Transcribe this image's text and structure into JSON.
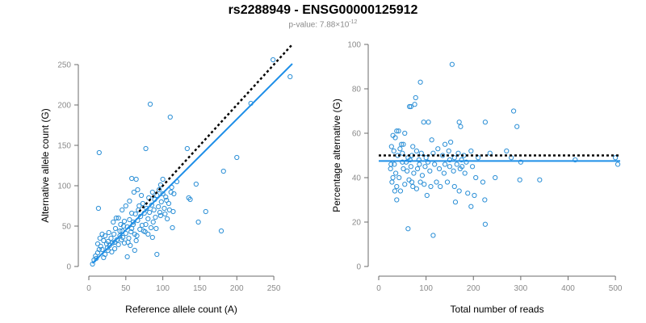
{
  "title": "rs2288949 - ENSG00000125912",
  "subtitle": {
    "prefix": "p-value: 7.88×10",
    "exponent": "-12"
  },
  "colors": {
    "points": "#2b8fd6",
    "fit": "#1f8fe8",
    "reference": "#000000",
    "ticks": "#8a8a8a"
  },
  "chart_data": [
    {
      "type": "scatter",
      "xlabel": "Reference allele count (A)",
      "ylabel": "Alternative allele count (G)",
      "xlim": [
        0,
        275
      ],
      "ylim": [
        0,
        250
      ],
      "xticks": [
        0,
        50,
        100,
        150,
        200,
        250
      ],
      "yticks": [
        0,
        50,
        100,
        150,
        200,
        250
      ],
      "grid": false,
      "fit_line": {
        "x": [
          5,
          275
        ],
        "y": [
          4,
          251
        ]
      },
      "reference_line": {
        "x": [
          68,
          275
        ],
        "y": [
          68,
          275
        ]
      },
      "points": [
        [
          14,
          141
        ],
        [
          13,
          72
        ],
        [
          83,
          201
        ],
        [
          110,
          185
        ],
        [
          77,
          146
        ],
        [
          133,
          146
        ],
        [
          182,
          118
        ],
        [
          200,
          135
        ],
        [
          219,
          202
        ],
        [
          249,
          256
        ],
        [
          272,
          235
        ],
        [
          58,
          109
        ],
        [
          64,
          108
        ],
        [
          100,
          108
        ],
        [
          97,
          101
        ],
        [
          112,
          98
        ],
        [
          115,
          90
        ],
        [
          119,
          105
        ],
        [
          145,
          102
        ],
        [
          135,
          85
        ],
        [
          137,
          83
        ],
        [
          158,
          68
        ],
        [
          148,
          55
        ],
        [
          179,
          44
        ],
        [
          113,
          48
        ],
        [
          92,
          15
        ],
        [
          5,
          3
        ],
        [
          7,
          8
        ],
        [
          9,
          13
        ],
        [
          10,
          10
        ],
        [
          12,
          17
        ],
        [
          14,
          21
        ],
        [
          16,
          25
        ],
        [
          18,
          21
        ],
        [
          20,
          11
        ],
        [
          22,
          15
        ],
        [
          12,
          28
        ],
        [
          15,
          35
        ],
        [
          18,
          40
        ],
        [
          20,
          32
        ],
        [
          24,
          28
        ],
        [
          25,
          23
        ],
        [
          26,
          31
        ],
        [
          28,
          26
        ],
        [
          30,
          35
        ],
        [
          31,
          18
        ],
        [
          32,
          29
        ],
        [
          34,
          40
        ],
        [
          35,
          22
        ],
        [
          36,
          47
        ],
        [
          38,
          33
        ],
        [
          40,
          27
        ],
        [
          42,
          38
        ],
        [
          43,
          52
        ],
        [
          45,
          44
        ],
        [
          46,
          36
        ],
        [
          48,
          29
        ],
        [
          50,
          41
        ],
        [
          52,
          49
        ],
        [
          54,
          35
        ],
        [
          55,
          58
        ],
        [
          56,
          26
        ],
        [
          58,
          47
        ],
        [
          60,
          55
        ],
        [
          62,
          40
        ],
        [
          63,
          65
        ],
        [
          64,
          32
        ],
        [
          66,
          57
        ],
        [
          67,
          70
        ],
        [
          69,
          46
        ],
        [
          70,
          62
        ],
        [
          72,
          51
        ],
        [
          73,
          78
        ],
        [
          75,
          66
        ],
        [
          76,
          43
        ],
        [
          78,
          72
        ],
        [
          80,
          59
        ],
        [
          81,
          85
        ],
        [
          82,
          67
        ],
        [
          84,
          48
        ],
        [
          85,
          76
        ],
        [
          86,
          92
        ],
        [
          88,
          70
        ],
        [
          89,
          83
        ],
        [
          90,
          61
        ],
        [
          92,
          88
        ],
        [
          94,
          74
        ],
        [
          95,
          95
        ],
        [
          96,
          67
        ],
        [
          98,
          80
        ],
        [
          100,
          90
        ],
        [
          102,
          72
        ],
        [
          104,
          86
        ],
        [
          106,
          59
        ],
        [
          108,
          78
        ],
        [
          111,
          92
        ],
        [
          114,
          68
        ],
        [
          40,
          60
        ],
        [
          45,
          70
        ],
        [
          50,
          75
        ],
        [
          55,
          81
        ],
        [
          61,
          92
        ],
        [
          66,
          95
        ],
        [
          71,
          88
        ],
        [
          60,
          52
        ],
        [
          74,
          44
        ],
        [
          86,
          36
        ],
        [
          52,
          12
        ],
        [
          62,
          20
        ],
        [
          22,
          38
        ],
        [
          27,
          42
        ],
        [
          33,
          55
        ],
        [
          37,
          60
        ],
        [
          44,
          33
        ],
        [
          47,
          50
        ],
        [
          53,
          30
        ],
        [
          57,
          43
        ],
        [
          65,
          38
        ],
        [
          77,
          52
        ],
        [
          80,
          40
        ],
        [
          87,
          55
        ],
        [
          91,
          47
        ],
        [
          97,
          63
        ],
        [
          103,
          65
        ],
        [
          105,
          82
        ],
        [
          109,
          70
        ],
        [
          26,
          20
        ],
        [
          35,
          30
        ],
        [
          42,
          44
        ],
        [
          48,
          56
        ],
        [
          58,
          66
        ],
        [
          68,
          75
        ]
      ]
    },
    {
      "type": "scatter",
      "xlabel": "Total number of reads",
      "ylabel": "Percentage alternative (G)",
      "xlim": [
        0,
        510
      ],
      "ylim": [
        0,
        100
      ],
      "xticks": [
        0,
        100,
        200,
        300,
        400,
        500
      ],
      "yticks": [
        0,
        20,
        40,
        60,
        80,
        100
      ],
      "grid": false,
      "fit_line": {
        "x": [
          0,
          510
        ],
        "y": [
          47.5,
          47.5
        ]
      },
      "reference_line": {
        "x": [
          0,
          510
        ],
        "y": [
          50,
          50
        ]
      },
      "points": [
        [
          155,
          91
        ],
        [
          88,
          83
        ],
        [
          78,
          76
        ],
        [
          76,
          73
        ],
        [
          68,
          72
        ],
        [
          65,
          72
        ],
        [
          95,
          65
        ],
        [
          105,
          65
        ],
        [
          170,
          65
        ],
        [
          173,
          63
        ],
        [
          225,
          65
        ],
        [
          285,
          70
        ],
        [
          292,
          63
        ],
        [
          38,
          61
        ],
        [
          42,
          61
        ],
        [
          30,
          59
        ],
        [
          55,
          60
        ],
        [
          35,
          58
        ],
        [
          48,
          55
        ],
        [
          27,
          54
        ],
        [
          32,
          52
        ],
        [
          40,
          50
        ],
        [
          45,
          53
        ],
        [
          50,
          51
        ],
        [
          62,
          49
        ],
        [
          70,
          50
        ],
        [
          72,
          54
        ],
        [
          80,
          52
        ],
        [
          85,
          48
        ],
        [
          90,
          51
        ],
        [
          100,
          49
        ],
        [
          115,
          51
        ],
        [
          125,
          53
        ],
        [
          135,
          50
        ],
        [
          140,
          55
        ],
        [
          148,
          52
        ],
        [
          152,
          56
        ],
        [
          160,
          49
        ],
        [
          168,
          51
        ],
        [
          175,
          48
        ],
        [
          180,
          50
        ],
        [
          185,
          47
        ],
        [
          195,
          52
        ],
        [
          210,
          49
        ],
        [
          235,
          51
        ],
        [
          270,
          52
        ],
        [
          280,
          49
        ],
        [
          300,
          47
        ],
        [
          500,
          49
        ],
        [
          505,
          46
        ],
        [
          415,
          48
        ],
        [
          25,
          44
        ],
        [
          33,
          46
        ],
        [
          36,
          42
        ],
        [
          43,
          40
        ],
        [
          52,
          44
        ],
        [
          58,
          47
        ],
        [
          60,
          43
        ],
        [
          68,
          45
        ],
        [
          74,
          42
        ],
        [
          82,
          44
        ],
        [
          92,
          41
        ],
        [
          98,
          45
        ],
        [
          108,
          43
        ],
        [
          118,
          46
        ],
        [
          128,
          44
        ],
        [
          138,
          42
        ],
        [
          150,
          45
        ],
        [
          158,
          43
        ],
        [
          165,
          46
        ],
        [
          172,
          44
        ],
        [
          182,
          42
        ],
        [
          198,
          45
        ],
        [
          205,
          40
        ],
        [
          220,
          38
        ],
        [
          246,
          40
        ],
        [
          298,
          39
        ],
        [
          340,
          39
        ],
        [
          28,
          38
        ],
        [
          30,
          40
        ],
        [
          38,
          36
        ],
        [
          46,
          34
        ],
        [
          55,
          37
        ],
        [
          64,
          39
        ],
        [
          72,
          36
        ],
        [
          80,
          35
        ],
        [
          88,
          38
        ],
        [
          96,
          37
        ],
        [
          110,
          36
        ],
        [
          122,
          38
        ],
        [
          130,
          36
        ],
        [
          145,
          38
        ],
        [
          160,
          36
        ],
        [
          170,
          34
        ],
        [
          188,
          33
        ],
        [
          202,
          32
        ],
        [
          224,
          30
        ],
        [
          38,
          30
        ],
        [
          34,
          34
        ],
        [
          70,
          38
        ],
        [
          102,
          32
        ],
        [
          162,
          29
        ],
        [
          195,
          27
        ],
        [
          225,
          19
        ],
        [
          62,
          17
        ],
        [
          115,
          14
        ],
        [
          26,
          46
        ],
        [
          50,
          47
        ],
        [
          66,
          48
        ],
        [
          86,
          46
        ],
        [
          104,
          47
        ],
        [
          140,
          46
        ],
        [
          176,
          45
        ],
        [
          52,
          55
        ],
        [
          112,
          57
        ],
        [
          150,
          48
        ]
      ]
    }
  ]
}
